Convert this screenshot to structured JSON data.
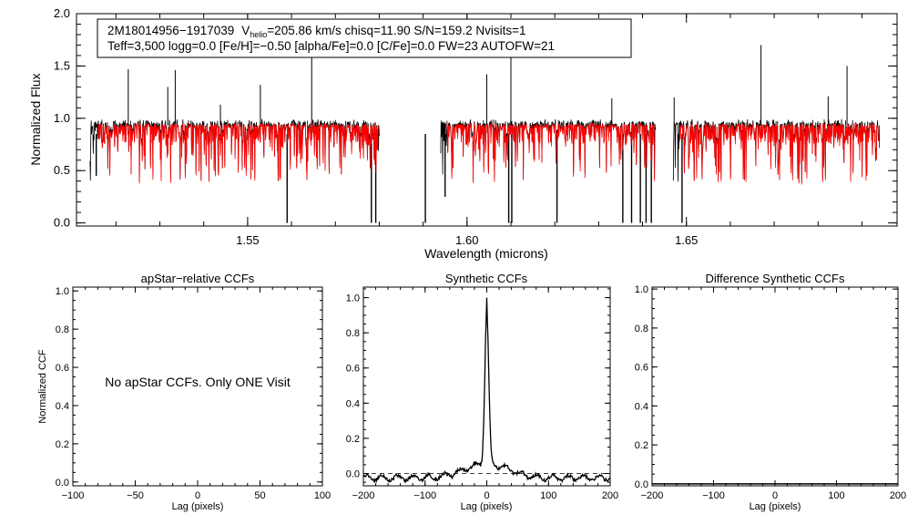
{
  "chart_data": [
    {
      "type": "line",
      "id": "spectrum",
      "xlabel": "Wavelength (microns)",
      "ylabel": "Normalized Flux",
      "xlim": [
        1.511,
        1.698
      ],
      "ylim": [
        -0.03,
        2.0
      ],
      "x_ticks": [
        1.55,
        1.6,
        1.65
      ],
      "x_tick_labels": [
        "1.55",
        "1.60",
        "1.65"
      ],
      "y_ticks": [
        0.0,
        0.5,
        1.0,
        1.5,
        2.0
      ],
      "y_tick_labels": [
        "0.0",
        "0.5",
        "1.0",
        "1.5",
        "2.0"
      ],
      "header": {
        "line1_star": "2M18014956−1917039",
        "line1_v": "V",
        "line1_sub": "helio",
        "line1_rest": "=205.86 km/s  chisq=11.90  S/N=159.2  Nvisits=1",
        "line2": "Teff=3,500 logg=0.0 [Fe/H]=−0.50 [alpha/Fe]=0.0 [C/Fe]=0.0 FW=23 AUTOFW=21"
      },
      "chips": [
        [
          1.514,
          1.58
        ],
        [
          1.594,
          1.643
        ],
        [
          1.647,
          1.694
        ]
      ],
      "continuum": 0.93,
      "series": [
        {
          "name": "observed",
          "color": "#000000"
        },
        {
          "name": "model",
          "color": "#ff0000"
        }
      ],
      "emission_lines": [
        {
          "x": 1.5228,
          "y": 1.47
        },
        {
          "x": 1.5318,
          "y": 1.3
        },
        {
          "x": 1.5335,
          "y": 1.46
        },
        {
          "x": 1.5438,
          "y": 1.13
        },
        {
          "x": 1.5529,
          "y": 1.32
        },
        {
          "x": 1.5646,
          "y": 1.62
        },
        {
          "x": 1.6045,
          "y": 1.42
        },
        {
          "x": 1.61,
          "y": 1.58
        },
        {
          "x": 1.633,
          "y": 1.19
        },
        {
          "x": 1.6472,
          "y": 1.2
        },
        {
          "x": 1.667,
          "y": 1.7
        },
        {
          "x": 1.6823,
          "y": 1.21
        },
        {
          "x": 1.6866,
          "y": 1.5
        }
      ],
      "absorption_lines": [
        {
          "x": 1.559,
          "y": 0.0
        },
        {
          "x": 1.5782,
          "y": 0.0
        },
        {
          "x": 1.5792,
          "y": 0.0
        },
        {
          "x": 1.5905,
          "y": 0.0
        },
        {
          "x": 1.595,
          "y": 0.25
        },
        {
          "x": 1.6095,
          "y": 0.0
        },
        {
          "x": 1.6102,
          "y": 0.0
        },
        {
          "x": 1.6205,
          "y": 0.0
        },
        {
          "x": 1.6355,
          "y": 0.0
        },
        {
          "x": 1.6375,
          "y": 0.0
        },
        {
          "x": 1.6395,
          "y": 0.0
        },
        {
          "x": 1.6408,
          "y": 0.0
        },
        {
          "x": 1.642,
          "y": 0.0
        },
        {
          "x": 1.649,
          "y": 0.0
        },
        {
          "x": 1.5155,
          "y": 0.45
        }
      ]
    },
    {
      "type": "line",
      "id": "apstar-ccf",
      "title": "apStar−relative CCFs",
      "xlabel": "Lag (pixels)",
      "ylabel": "Normalized CCF",
      "xlim": [
        -100,
        100
      ],
      "ylim": [
        -0.02,
        1.02
      ],
      "x_ticks": [
        -100,
        -50,
        0,
        50,
        100
      ],
      "x_tick_labels": [
        "−100",
        "−50",
        "0",
        "50",
        "100"
      ],
      "y_ticks": [
        0.0,
        0.2,
        0.4,
        0.6,
        0.8,
        1.0
      ],
      "y_tick_labels": [
        "0.0",
        "0.2",
        "0.4",
        "0.6",
        "0.8",
        "1.0"
      ],
      "annotation": "No apStar CCFs.  Only ONE Visit"
    },
    {
      "type": "line",
      "id": "synthetic-ccf",
      "title": "Synthetic CCFs",
      "xlabel": "Lag (pixels)",
      "xlim": [
        -200,
        200
      ],
      "ylim": [
        -0.07,
        1.06
      ],
      "x_ticks": [
        -200,
        -100,
        0,
        100,
        200
      ],
      "x_tick_labels": [
        "−200",
        "−100",
        "0",
        "100",
        "200"
      ],
      "y_ticks": [
        0.0,
        0.2,
        0.4,
        0.6,
        0.8,
        1.0
      ],
      "y_tick_labels": [
        "0.0",
        "0.2",
        "0.4",
        "0.6",
        "0.8",
        "1.0"
      ],
      "baseline": 0.0,
      "peak_lag": 0,
      "peak_value": 1.0
    },
    {
      "type": "line",
      "id": "difference-ccf",
      "title": "Difference Synthetic CCFs",
      "xlabel": "Lag (pixels)",
      "xlim": [
        -200,
        200
      ],
      "ylim": [
        -0.01,
        1.01
      ],
      "x_ticks": [
        -200,
        -100,
        0,
        100,
        200
      ],
      "x_tick_labels": [
        "−200",
        "−100",
        "0",
        "100",
        "200"
      ],
      "y_ticks": [
        0.0,
        0.2,
        0.4,
        0.6,
        0.8,
        1.0
      ],
      "y_tick_labels": [
        "0.0",
        "0.2",
        "0.4",
        "0.6",
        "0.8",
        "1.0"
      ],
      "flat_value": 0.0
    }
  ]
}
